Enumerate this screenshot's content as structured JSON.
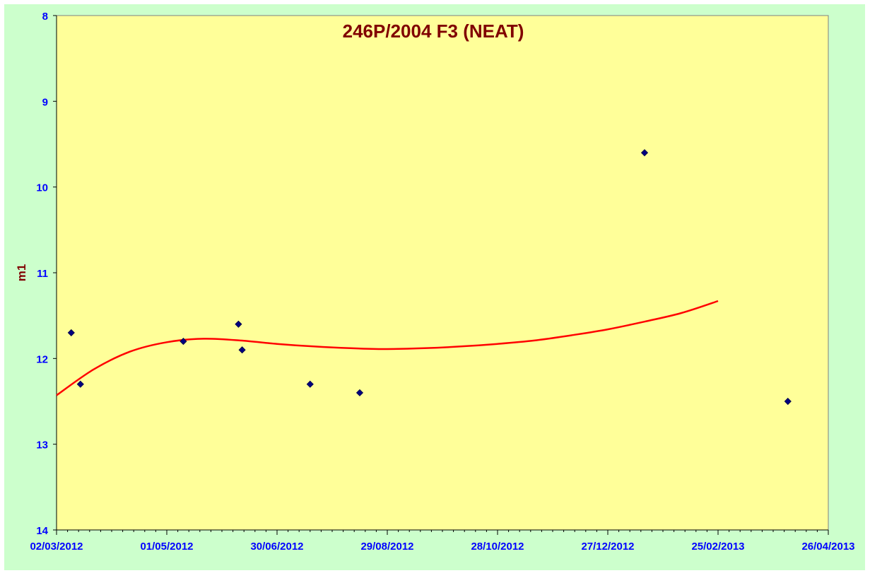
{
  "chart_data": {
    "type": "scatter",
    "title": "246P/2004 F3 (NEAT)",
    "xlabel": "",
    "ylabel": "m1",
    "y_inverted": true,
    "ylim": [
      8,
      14
    ],
    "yticks": [
      8,
      9,
      10,
      11,
      12,
      13,
      14
    ],
    "xlim": [
      "2012-03-02",
      "2013-04-26"
    ],
    "xticks": [
      "02/03/2012",
      "01/05/2012",
      "30/06/2012",
      "29/08/2012",
      "28/10/2012",
      "27/12/2012",
      "25/02/2013",
      "26/04/2013"
    ],
    "grid": false,
    "legend": "none",
    "colors": {
      "outer_background": "#ccffcc",
      "plot_background": "#ffff99",
      "title": "#800000",
      "ylabel": "#800000",
      "tick_labels": "#0000ff",
      "points": "#000080",
      "fit_curve": "#ff0000"
    },
    "series": [
      {
        "type": "scatter",
        "marker": "diamond",
        "points": [
          {
            "x": "2012-03-10",
            "y": 11.7
          },
          {
            "x": "2012-03-15",
            "y": 12.3
          },
          {
            "x": "2012-05-10",
            "y": 11.8
          },
          {
            "x": "2012-06-09",
            "y": 11.6
          },
          {
            "x": "2012-06-11",
            "y": 11.9
          },
          {
            "x": "2012-07-18",
            "y": 12.3
          },
          {
            "x": "2012-08-14",
            "y": 12.4
          },
          {
            "x": "2013-01-16",
            "y": 9.6
          },
          {
            "x": "2013-04-04",
            "y": 12.5
          }
        ]
      },
      {
        "type": "line",
        "style": "smooth-fit",
        "points": [
          {
            "x": "2012-03-02",
            "y": 12.43
          },
          {
            "x": "2012-03-22",
            "y": 12.13
          },
          {
            "x": "2012-04-11",
            "y": 11.92
          },
          {
            "x": "2012-05-01",
            "y": 11.81
          },
          {
            "x": "2012-05-21",
            "y": 11.77
          },
          {
            "x": "2012-06-10",
            "y": 11.79
          },
          {
            "x": "2012-06-30",
            "y": 11.83
          },
          {
            "x": "2012-07-20",
            "y": 11.86
          },
          {
            "x": "2012-08-09",
            "y": 11.88
          },
          {
            "x": "2012-08-29",
            "y": 11.89
          },
          {
            "x": "2012-09-18",
            "y": 11.88
          },
          {
            "x": "2012-10-08",
            "y": 11.86
          },
          {
            "x": "2012-10-28",
            "y": 11.83
          },
          {
            "x": "2012-11-17",
            "y": 11.79
          },
          {
            "x": "2012-12-07",
            "y": 11.73
          },
          {
            "x": "2012-12-27",
            "y": 11.66
          },
          {
            "x": "2013-01-16",
            "y": 11.57
          },
          {
            "x": "2013-02-05",
            "y": 11.47
          },
          {
            "x": "2013-02-25",
            "y": 11.33
          }
        ]
      }
    ]
  }
}
